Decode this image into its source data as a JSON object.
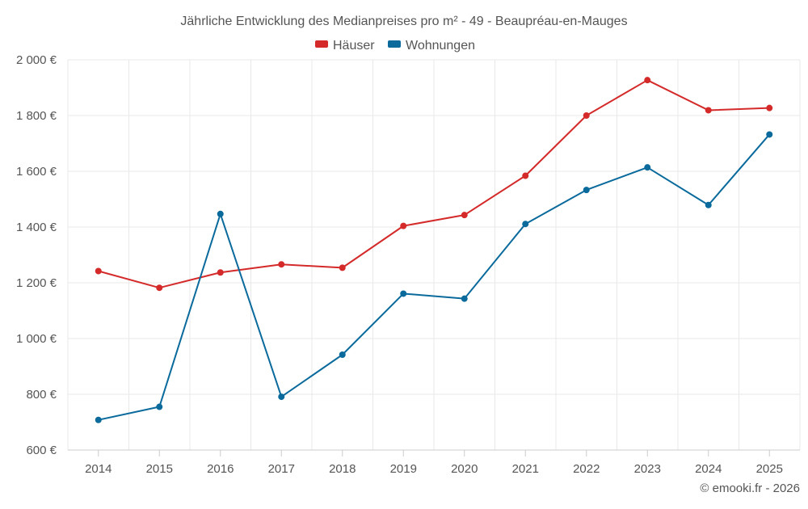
{
  "chart_data": {
    "type": "line",
    "title": "Jährliche Entwicklung des Medianpreises pro m² - 49 - Beaupréau-en-Mauges",
    "xlabel": "",
    "ylabel": "",
    "categories": [
      "2014",
      "2015",
      "2016",
      "2017",
      "2018",
      "2019",
      "2020",
      "2021",
      "2022",
      "2023",
      "2024",
      "2025"
    ],
    "series": [
      {
        "name": "Häuser",
        "color": "#d42a2a",
        "values": [
          1242,
          1182,
          1237,
          1266,
          1254,
          1404,
          1443,
          1584,
          1800,
          1927,
          1819,
          1827
        ]
      },
      {
        "name": "Wohnungen",
        "color": "#0a6a9c",
        "values": [
          708,
          755,
          1447,
          791,
          942,
          1161,
          1143,
          1411,
          1533,
          1614,
          1479,
          1732
        ]
      }
    ],
    "ylim": [
      600,
      2000
    ],
    "yticks": [
      600,
      800,
      1000,
      1200,
      1400,
      1600,
      1800,
      2000
    ],
    "ytick_labels": [
      "600 €",
      "800 €",
      "1 000 €",
      "1 200 €",
      "1 400 €",
      "1 600 €",
      "1 800 €",
      "2 000 €"
    ],
    "grid": true,
    "legend_position": "top-center"
  },
  "credit": "© emooki.fr - 2026"
}
